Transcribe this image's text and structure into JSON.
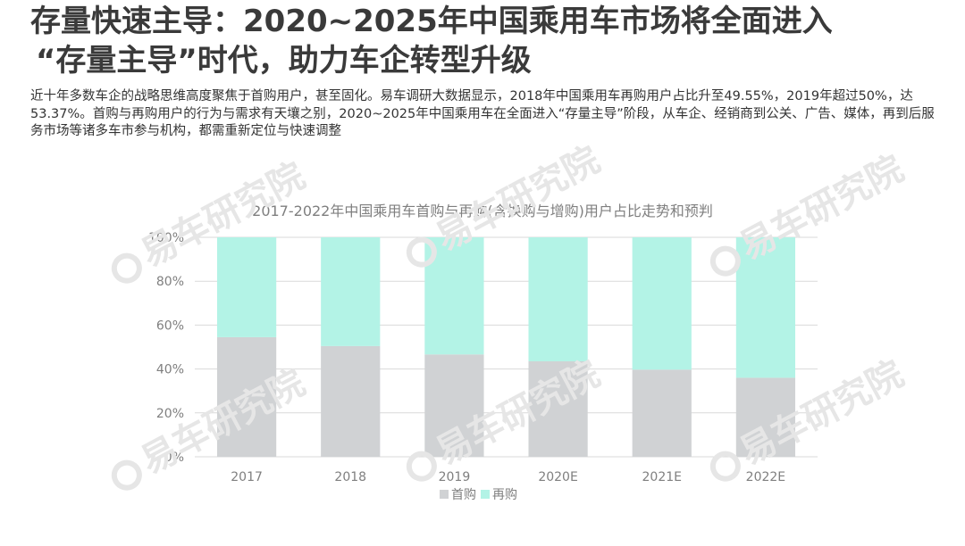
{
  "header": {
    "title_line1": "存量快速主导：2020~2025年中国乘用车市场将全面进入",
    "title_line2": "“存量主导”时代，助力车企转型升级",
    "intro": "近十年多数车企的战略思维高度聚焦于首购用户，甚至固化。易车调研大数据显示，2018年中国乘用车再购用户占比升至49.55%，2019年超过50%，达53.37%。首购与再购用户的行为与需求有天壤之别，2020~2025年中国乘用车在全面进入“存量主导”阶段，从车企、经销商到公关、广告、媒体，再到后服务市场等诸多车市参与机构，都需重新定位与快速调整"
  },
  "watermark": {
    "text": "易车研究院"
  },
  "chart_data": {
    "type": "bar",
    "stacked": true,
    "title": "2017-2022年中国乘用车首购与再购(含换购与增购)用户占比走势和预判",
    "categories": [
      "2017",
      "2018",
      "2019",
      "2020E",
      "2021E",
      "2022E"
    ],
    "series": [
      {
        "name": "首购",
        "color": "#d0d2d4",
        "values": [
          54.5,
          50.45,
          46.63,
          43.5,
          39.7,
          36.0
        ]
      },
      {
        "name": "再购",
        "color": "#b3f3e6",
        "values": [
          45.5,
          49.55,
          53.37,
          56.5,
          60.3,
          64.0
        ]
      }
    ],
    "yticks": [
      "0%",
      "20%",
      "40%",
      "60%",
      "80%",
      "100%"
    ],
    "ylim": [
      0,
      100
    ],
    "grid": true,
    "legend": "bottom",
    "xlabel": "",
    "ylabel": ""
  }
}
